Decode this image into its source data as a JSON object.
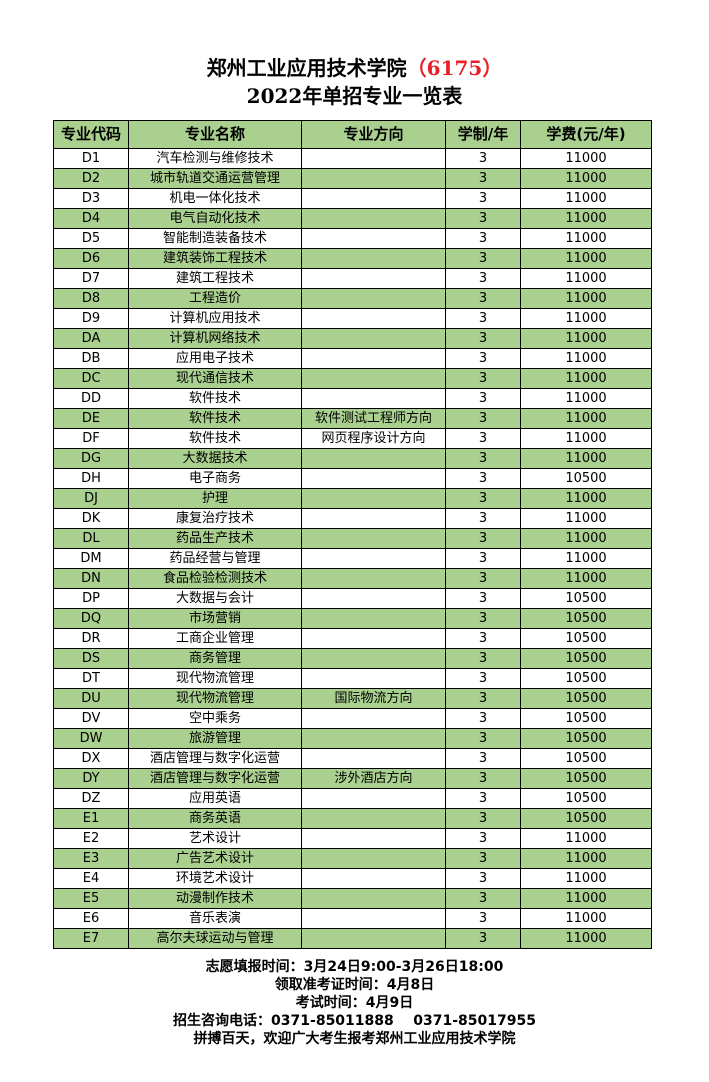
{
  "title": {
    "line1": "郑州工业应用技术学院",
    "code": "（6175）",
    "line2": "2022年单招专业一览表"
  },
  "table": {
    "headers": [
      "专业代码",
      "专业名称",
      "专业方向",
      "学制/年",
      "学费(元/年)"
    ],
    "rows": [
      [
        "D1",
        "汽车检测与维修技术",
        "",
        "3",
        "11000"
      ],
      [
        "D2",
        "城市轨道交通运营管理",
        "",
        "3",
        "11000"
      ],
      [
        "D3",
        "机电一体化技术",
        "",
        "3",
        "11000"
      ],
      [
        "D4",
        "电气自动化技术",
        "",
        "3",
        "11000"
      ],
      [
        "D5",
        "智能制造装备技术",
        "",
        "3",
        "11000"
      ],
      [
        "D6",
        "建筑装饰工程技术",
        "",
        "3",
        "11000"
      ],
      [
        "D7",
        "建筑工程技术",
        "",
        "3",
        "11000"
      ],
      [
        "D8",
        "工程造价",
        "",
        "3",
        "11000"
      ],
      [
        "D9",
        "计算机应用技术",
        "",
        "3",
        "11000"
      ],
      [
        "DA",
        "计算机网络技术",
        "",
        "3",
        "11000"
      ],
      [
        "DB",
        "应用电子技术",
        "",
        "3",
        "11000"
      ],
      [
        "DC",
        "现代通信技术",
        "",
        "3",
        "11000"
      ],
      [
        "DD",
        "软件技术",
        "",
        "3",
        "11000"
      ],
      [
        "DE",
        "软件技术",
        "软件测试工程师方向",
        "3",
        "11000"
      ],
      [
        "DF",
        "软件技术",
        "网页程序设计方向",
        "3",
        "11000"
      ],
      [
        "DG",
        "大数据技术",
        "",
        "3",
        "11000"
      ],
      [
        "DH",
        "电子商务",
        "",
        "3",
        "10500"
      ],
      [
        "DJ",
        "护理",
        "",
        "3",
        "11000"
      ],
      [
        "DK",
        "康复治疗技术",
        "",
        "3",
        "11000"
      ],
      [
        "DL",
        "药品生产技术",
        "",
        "3",
        "11000"
      ],
      [
        "DM",
        "药品经营与管理",
        "",
        "3",
        "11000"
      ],
      [
        "DN",
        "食品检验检测技术",
        "",
        "3",
        "11000"
      ],
      [
        "DP",
        "大数据与会计",
        "",
        "3",
        "10500"
      ],
      [
        "DQ",
        "市场营销",
        "",
        "3",
        "10500"
      ],
      [
        "DR",
        "工商企业管理",
        "",
        "3",
        "10500"
      ],
      [
        "DS",
        "商务管理",
        "",
        "3",
        "10500"
      ],
      [
        "DT",
        "现代物流管理",
        "",
        "3",
        "10500"
      ],
      [
        "DU",
        "现代物流管理",
        "国际物流方向",
        "3",
        "10500"
      ],
      [
        "DV",
        "空中乘务",
        "",
        "3",
        "10500"
      ],
      [
        "DW",
        "旅游管理",
        "",
        "3",
        "10500"
      ],
      [
        "DX",
        "酒店管理与数字化运营",
        "",
        "3",
        "10500"
      ],
      [
        "DY",
        "酒店管理与数字化运营",
        "涉外酒店方向",
        "3",
        "10500"
      ],
      [
        "DZ",
        "应用英语",
        "",
        "3",
        "10500"
      ],
      [
        "E1",
        "商务英语",
        "",
        "3",
        "10500"
      ],
      [
        "E2",
        "艺术设计",
        "",
        "3",
        "11000"
      ],
      [
        "E3",
        "广告艺术设计",
        "",
        "3",
        "11000"
      ],
      [
        "E4",
        "环境艺术设计",
        "",
        "3",
        "11000"
      ],
      [
        "E5",
        "动漫制作技术",
        "",
        "3",
        "11000"
      ],
      [
        "E6",
        "音乐表演",
        "",
        "3",
        "11000"
      ],
      [
        "E7",
        "高尔夫球运动与管理",
        "",
        "3",
        "11000"
      ]
    ]
  },
  "footer": [
    "志愿填报时间：3月24日9:00-3月26日18:00",
    "领取准考证时间：4月8日",
    "考试时间：4月9日",
    "招生咨询电话：0371-85011888    0371-85017955",
    "拼搏百天，欢迎广大考生报考郑州工业应用技术学院"
  ],
  "colors": {
    "header_bg": "#a9d08e",
    "alt_row_bg": "#a9d08e",
    "code_text": "#e8202a"
  }
}
